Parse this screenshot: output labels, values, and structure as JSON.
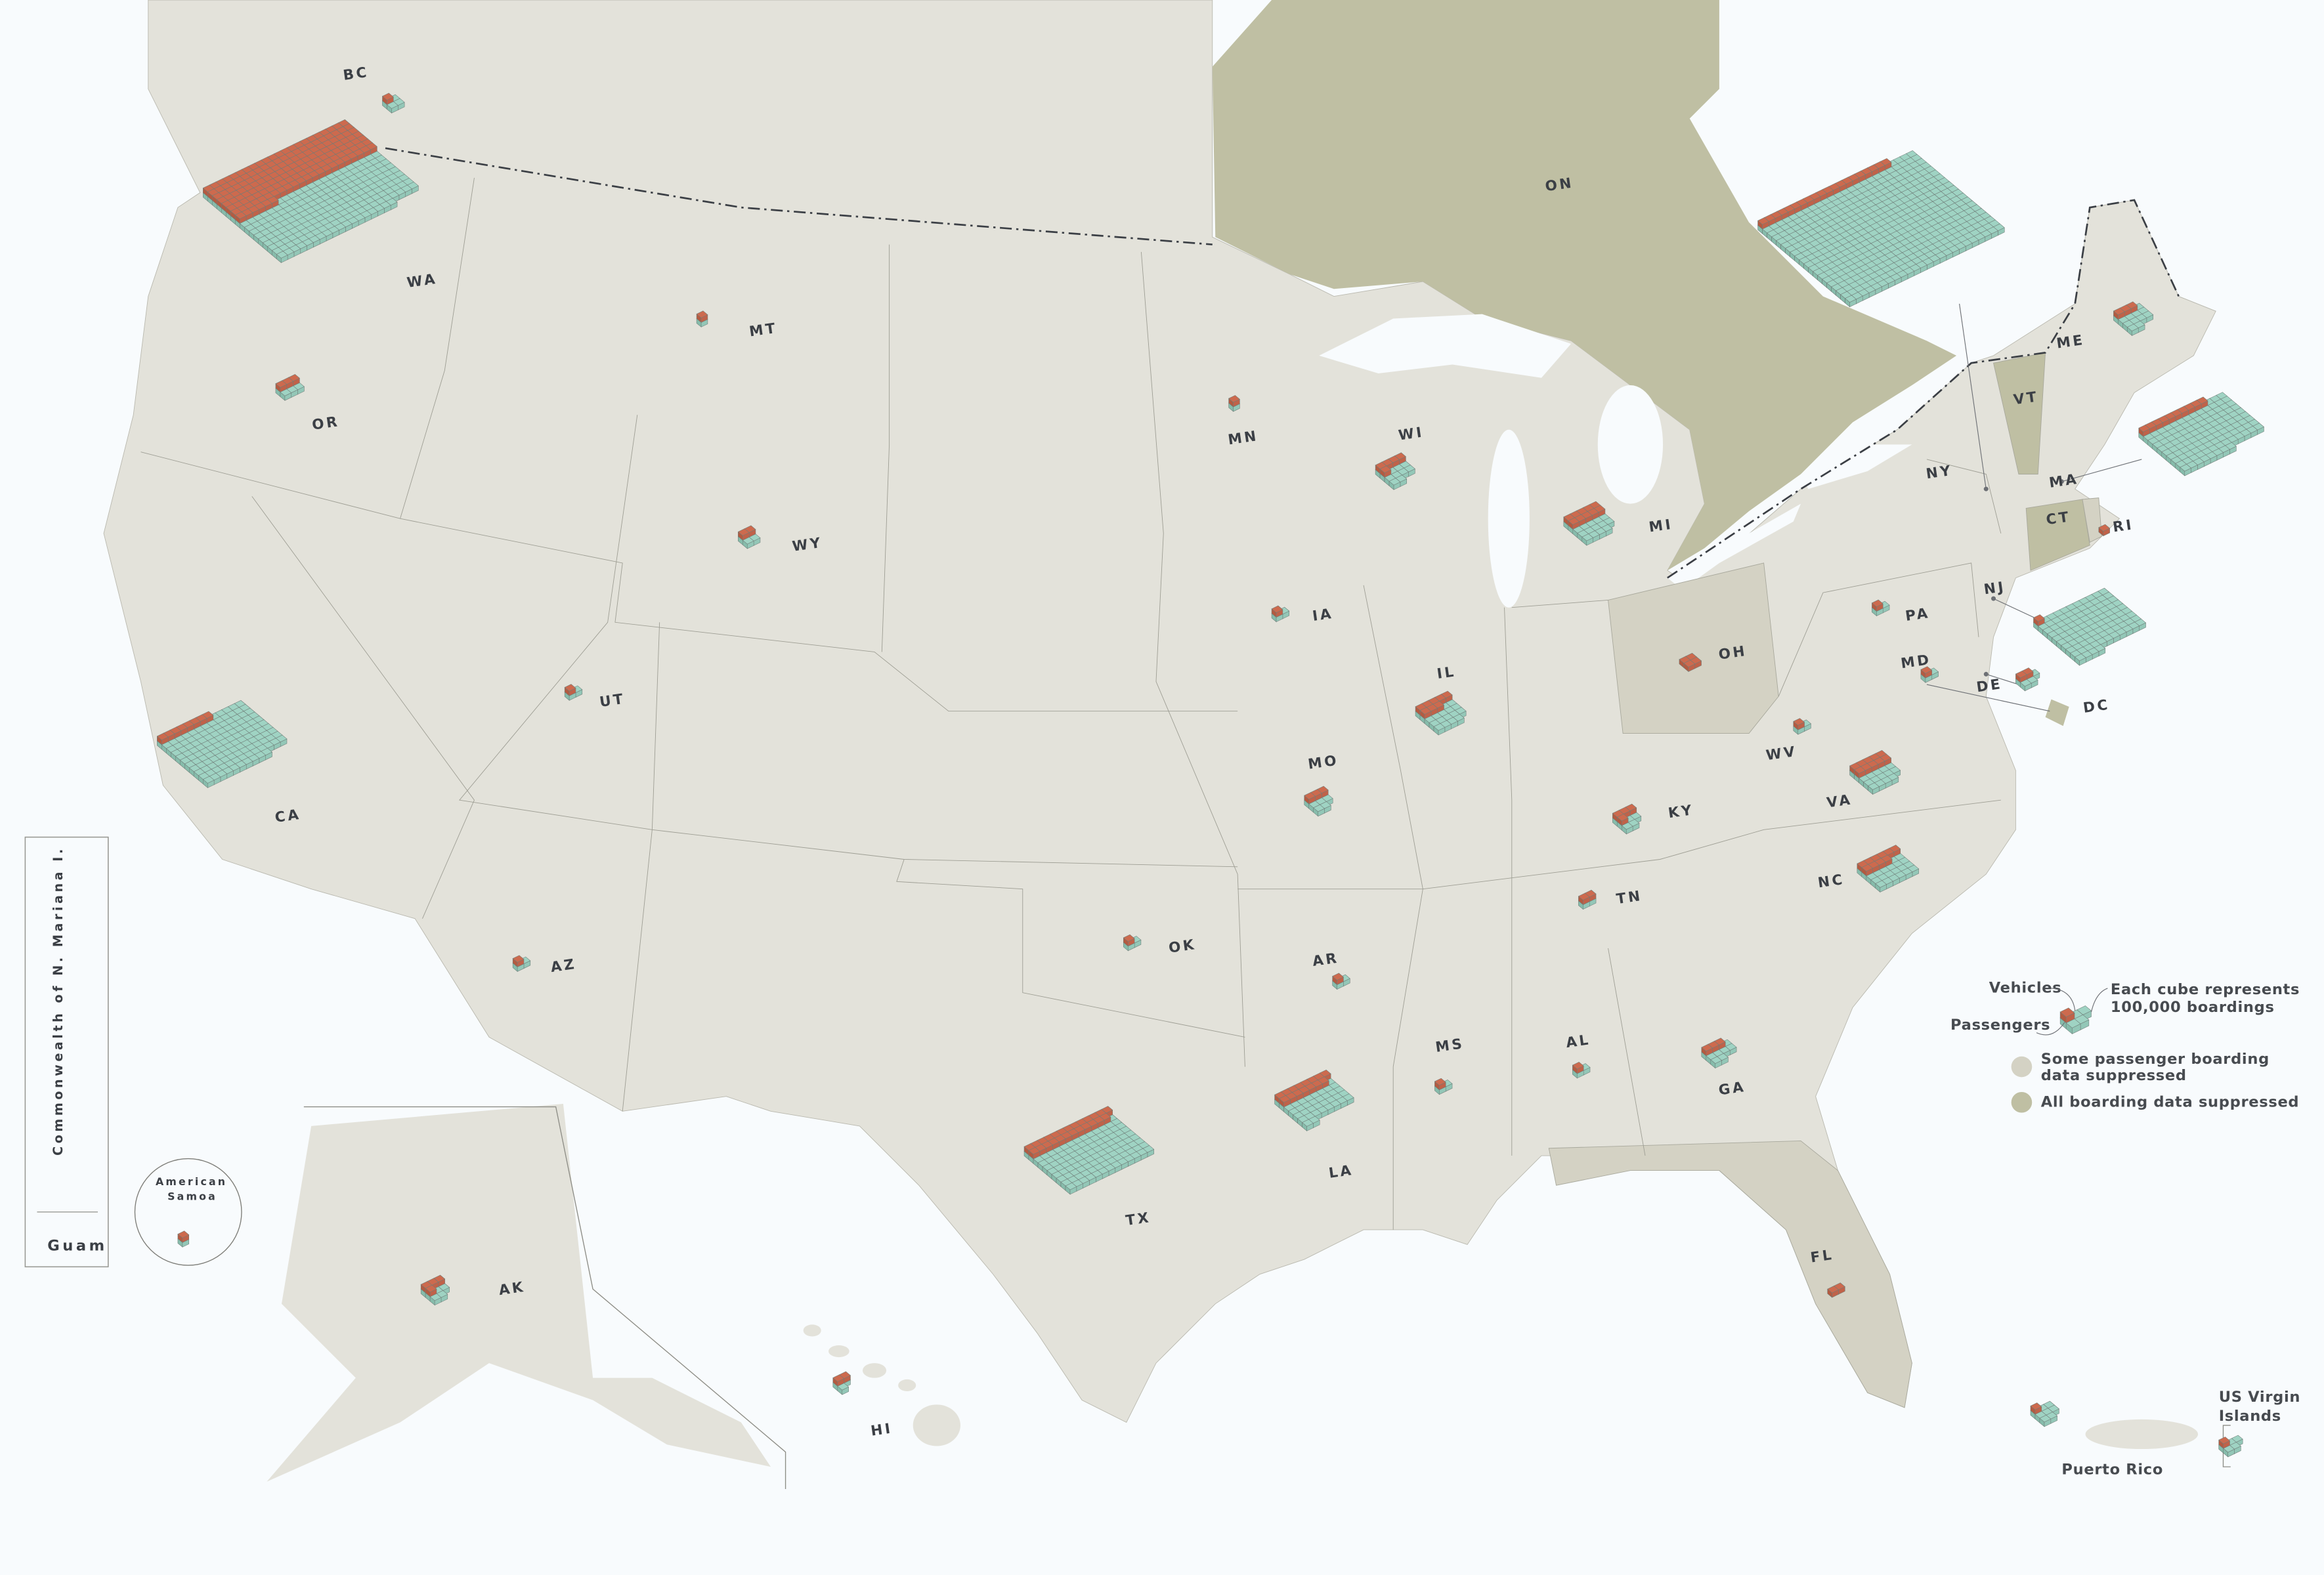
{
  "colors": {
    "background": "#f8fbfd",
    "land": "#e3e2da",
    "some_suppressed": "#d4d2c4",
    "all_suppressed": "#bfbfa3",
    "passenger_cube": "#9fd3c3",
    "vehicle_cube": "#cd6a4e"
  },
  "legend": {
    "vehicles": "Vehicles",
    "passengers": "Passengers",
    "cube_line1": "Each cube represents",
    "cube_line2": "100,000 boardings",
    "legend_cubes": {
      "passengers": 5,
      "vehicles": 1
    },
    "some_line1": "Some passenger boarding",
    "some_line2": "data suppressed",
    "all_label": "All boarding data suppressed"
  },
  "insets": {
    "mariana": "Commonwealth of N. Mariana I.",
    "guam": "Guam",
    "samoa_line1": "American",
    "samoa_line2": "Samoa",
    "puerto_rico": "Puerto Rico",
    "usvi_line1": "US Virgin",
    "usvi_line2": "Islands"
  },
  "regions": [
    {
      "code": "BC",
      "label": "BC",
      "passengers": 4,
      "vehicles": 1
    },
    {
      "code": "WA",
      "label": "WA",
      "passengers": 370,
      "vehicles": 160
    },
    {
      "code": "OR",
      "label": "OR",
      "passengers": 6,
      "vehicles": 3
    },
    {
      "code": "MT",
      "label": "MT",
      "passengers": 1,
      "vehicles": 1
    },
    {
      "code": "WY",
      "label": "WY",
      "passengers": 4,
      "vehicles": 2
    },
    {
      "code": "UT",
      "label": "UT",
      "passengers": 2,
      "vehicles": 1
    },
    {
      "code": "AZ",
      "label": "AZ",
      "passengers": 2,
      "vehicles": 1
    },
    {
      "code": "CA",
      "label": "CA",
      "passengers": 140,
      "vehicles": 8
    },
    {
      "code": "MN",
      "label": "MN",
      "passengers": 1,
      "vehicles": 1
    },
    {
      "code": "WI",
      "label": "WI",
      "passengers": 14,
      "vehicles": 5
    },
    {
      "code": "IA",
      "label": "IA",
      "passengers": 2,
      "vehicles": 1
    },
    {
      "code": "IL",
      "label": "IL",
      "passengers": 24,
      "vehicles": 8
    },
    {
      "code": "MO",
      "label": "MO",
      "passengers": 8,
      "vehicles": 3
    },
    {
      "code": "MI",
      "label": "MI",
      "passengers": 24,
      "vehicles": 10
    },
    {
      "code": "OH",
      "label": "OH",
      "passengers": 0,
      "vehicles": 4,
      "status": "some_suppressed"
    },
    {
      "code": "PA",
      "label": "PA",
      "passengers": 2,
      "vehicles": 1
    },
    {
      "code": "NY",
      "label": "NY",
      "passengers": 480,
      "vehicles": 20
    },
    {
      "code": "NJ",
      "label": "NJ",
      "passengers": 103,
      "vehicles": 1
    },
    {
      "code": "MD",
      "label": "MD",
      "passengers": 2,
      "vehicles": 1
    },
    {
      "code": "DE",
      "label": "DE",
      "passengers": 5,
      "vehicles": 2
    },
    {
      "code": "DC",
      "label": "DC",
      "passengers": 0,
      "vehicles": 0,
      "status": "all_suppressed"
    },
    {
      "code": "WV",
      "label": "WV",
      "passengers": 2,
      "vehicles": 1
    },
    {
      "code": "VA",
      "label": "VA",
      "passengers": 24,
      "vehicles": 10
    },
    {
      "code": "KY",
      "label": "KY",
      "passengers": 8,
      "vehicles": 4
    },
    {
      "code": "TN",
      "label": "TN",
      "passengers": 2,
      "vehicles": 2
    },
    {
      "code": "NC",
      "label": "NC",
      "passengers": 30,
      "vehicles": 10
    },
    {
      "code": "OK",
      "label": "OK",
      "passengers": 2,
      "vehicles": 1
    },
    {
      "code": "AR",
      "label": "AR",
      "passengers": 2,
      "vehicles": 1
    },
    {
      "code": "TX",
      "label": "TX",
      "passengers": 130,
      "vehicles": 25
    },
    {
      "code": "LA",
      "label": "LA",
      "passengers": 50,
      "vehicles": 15
    },
    {
      "code": "MS",
      "label": "MS",
      "passengers": 2,
      "vehicles": 1
    },
    {
      "code": "AL",
      "label": "AL",
      "passengers": 2,
      "vehicles": 1
    },
    {
      "code": "GA",
      "label": "GA",
      "passengers": 10,
      "vehicles": 3
    },
    {
      "code": "FL",
      "label": "FL",
      "passengers": 0,
      "vehicles": 2,
      "status": "some_suppressed"
    },
    {
      "code": "ME",
      "label": "ME",
      "passengers": 14,
      "vehicles": 3
    },
    {
      "code": "MA",
      "label": "MA",
      "passengers": 125,
      "vehicles": 10
    },
    {
      "code": "VT",
      "label": "VT",
      "passengers": 0,
      "vehicles": 0,
      "status": "all_suppressed"
    },
    {
      "code": "CT",
      "label": "CT",
      "passengers": 0,
      "vehicles": 0,
      "status": "all_suppressed"
    },
    {
      "code": "RI",
      "label": "RI",
      "passengers": 0,
      "vehicles": 1,
      "status": "some_suppressed"
    },
    {
      "code": "ON",
      "label": "ON",
      "passengers": 0,
      "vehicles": 0,
      "status": "all_suppressed"
    },
    {
      "code": "AK",
      "label": "AK",
      "passengers": 8,
      "vehicles": 4
    },
    {
      "code": "HI",
      "label": "HI",
      "passengers": 3,
      "vehicles": 2
    },
    {
      "code": "PR",
      "label": "",
      "passengers": 8,
      "vehicles": 1
    },
    {
      "code": "VI",
      "label": "",
      "passengers": 5,
      "vehicles": 1
    },
    {
      "code": "AS",
      "label": "",
      "passengers": 1,
      "vehicles": 1
    }
  ]
}
